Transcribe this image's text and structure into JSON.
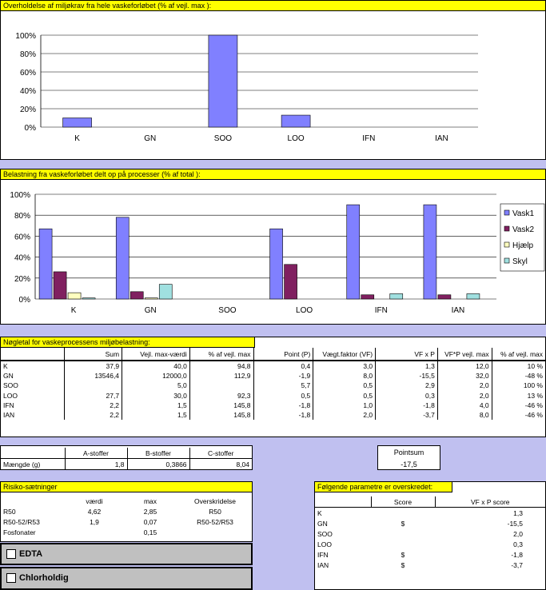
{
  "chart1": {
    "title": "Overholdelse af miljøkrav fra hele vaskeforløbet (% af vejl. max ):",
    "chart_data": {
      "type": "bar",
      "categories": [
        "K",
        "GN",
        "SOO",
        "LOO",
        "IFN",
        "IAN"
      ],
      "values": [
        10,
        0,
        100,
        13,
        0,
        0
      ],
      "ylim": [
        0,
        100
      ],
      "yticks": [
        "0%",
        "20%",
        "40%",
        "60%",
        "80%",
        "100%"
      ],
      "grid": true,
      "color": "#8080ff"
    }
  },
  "chart2": {
    "title": "Belastning fra vaskeforløbet delt op på processer (% af total ):",
    "chart_data": {
      "type": "bar",
      "categories": [
        "K",
        "GN",
        "SOO",
        "LOO",
        "IFN",
        "IAN"
      ],
      "series": [
        {
          "name": "Vask1",
          "values": [
            67,
            78,
            0,
            67,
            90,
            90
          ],
          "color": "#8080ff"
        },
        {
          "name": "Vask2",
          "values": [
            26,
            7,
            0,
            33,
            4,
            4
          ],
          "color": "#802060"
        },
        {
          "name": "Hjælp",
          "values": [
            6,
            1,
            0,
            0,
            0,
            0
          ],
          "color": "#ffffc0"
        },
        {
          "name": "Skyl",
          "values": [
            1,
            14,
            0,
            0,
            5,
            5
          ],
          "color": "#a0e0e0"
        }
      ],
      "ylim": [
        0,
        100
      ],
      "yticks": [
        "0%",
        "20%",
        "40%",
        "60%",
        "80%",
        "100%"
      ],
      "grid": true,
      "legend": "right"
    }
  },
  "key_figures": {
    "title": "Nøgletal for vaskeprocessens miljøbelastning:",
    "headers": [
      "",
      "Sum",
      "Vejl. max-værdi",
      "% af vejl. max",
      "Point (P)",
      "Vægt.faktor (VF)",
      "VF x P",
      "VF*P vejl. max",
      "% af vejl. max"
    ],
    "rows": [
      [
        "K",
        "37,9",
        "40,0",
        "94,8",
        "0,4",
        "3,0",
        "1,3",
        "12,0",
        "10 %"
      ],
      [
        "GN",
        "13546,4",
        "12000,0",
        "112,9",
        "-1,9",
        "8,0",
        "-15,5",
        "32,0",
        "-48 %"
      ],
      [
        "SOO",
        "",
        "5,0",
        "",
        "5,7",
        "0,5",
        "2,9",
        "2,0",
        "100 %"
      ],
      [
        "LOO",
        "27,7",
        "30,0",
        "92,3",
        "0,5",
        "0,5",
        "0,3",
        "2,0",
        "13 %"
      ],
      [
        "IFN",
        "2,2",
        "1,5",
        "145,8",
        "-1,8",
        "1,0",
        "-1,8",
        "4,0",
        "-46 %"
      ],
      [
        "IAN",
        "2,2",
        "1,5",
        "145,8",
        "-1,8",
        "2,0",
        "-3,7",
        "8,0",
        "-46 %"
      ]
    ]
  },
  "stoffer": {
    "headers": [
      "",
      "A-stoffer",
      "B-stoffer",
      "C-stoffer"
    ],
    "row": [
      "Mængde (g)",
      "1,8",
      "0,3866",
      "8,04"
    ]
  },
  "pointsum": {
    "label": "Pointsum",
    "value": "-17,5"
  },
  "risiko": {
    "title": "Risiko-sætninger",
    "headers": [
      "",
      "værdi",
      "max",
      "Overskridelse"
    ],
    "rows": [
      [
        "R50",
        "4,62",
        "2,85",
        "R50"
      ],
      [
        "R50-52/R53",
        "1,9",
        "0,07",
        "R50-52/R53"
      ],
      [
        "Fosfonater",
        "",
        "0,15",
        ""
      ]
    ]
  },
  "checkboxes": {
    "edta": "EDTA",
    "chlor": "Chlorholdig"
  },
  "overskredet": {
    "title": "Følgende parametre er overskredet:",
    "headers": [
      "",
      "Score",
      "VF x P score"
    ],
    "rows": [
      [
        "K",
        "",
        "1,3"
      ],
      [
        "GN",
        "$",
        "-15,5"
      ],
      [
        "SOO",
        "",
        "2,0"
      ],
      [
        "LOO",
        "",
        "0,3"
      ],
      [
        "IFN",
        "$",
        "-1,8"
      ],
      [
        "IAN",
        "$",
        "-3,7"
      ]
    ]
  }
}
